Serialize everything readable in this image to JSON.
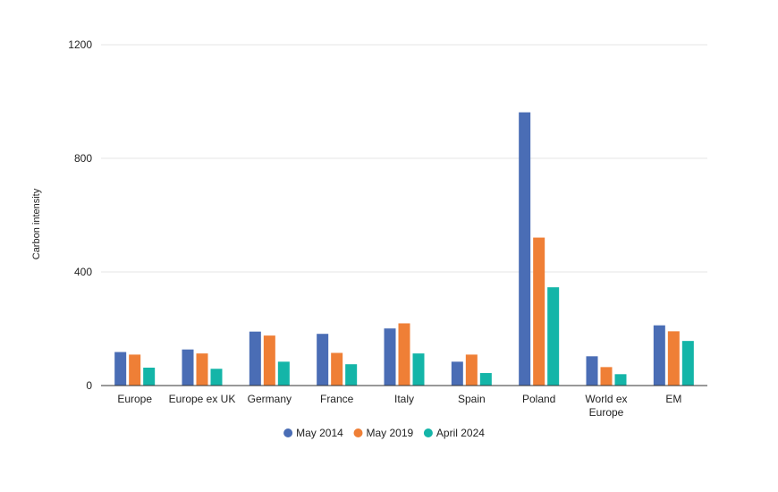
{
  "chart_data": {
    "type": "bar",
    "title": "",
    "xlabel": "",
    "ylabel": "Carbon intensity",
    "ylim": [
      0,
      1200
    ],
    "yticks": [
      0,
      400,
      800,
      1200
    ],
    "grid": true,
    "legend_position": "bottom",
    "categories": [
      "Europe",
      "Europe ex UK",
      "Germany",
      "France",
      "Italy",
      "Spain",
      "Poland",
      "World ex Europe",
      "EM"
    ],
    "category_lines": [
      [
        "Europe"
      ],
      [
        "Europe ex UK"
      ],
      [
        "Germany"
      ],
      [
        "France"
      ],
      [
        "Italy"
      ],
      [
        "Spain"
      ],
      [
        "Poland"
      ],
      [
        "World ex",
        "Europe"
      ],
      [
        "EM"
      ]
    ],
    "series": [
      {
        "name": "May 2014",
        "color": "#4a6db5",
        "values": [
          118,
          127,
          190,
          182,
          201,
          84,
          962,
          103,
          212
        ]
      },
      {
        "name": "May 2019",
        "color": "#ef7f36",
        "values": [
          109,
          113,
          176,
          115,
          219,
          109,
          521,
          65,
          191
        ]
      },
      {
        "name": "April 2024",
        "color": "#14b5a8",
        "values": [
          63,
          59,
          84,
          75,
          113,
          44,
          346,
          40,
          157
        ]
      }
    ]
  }
}
